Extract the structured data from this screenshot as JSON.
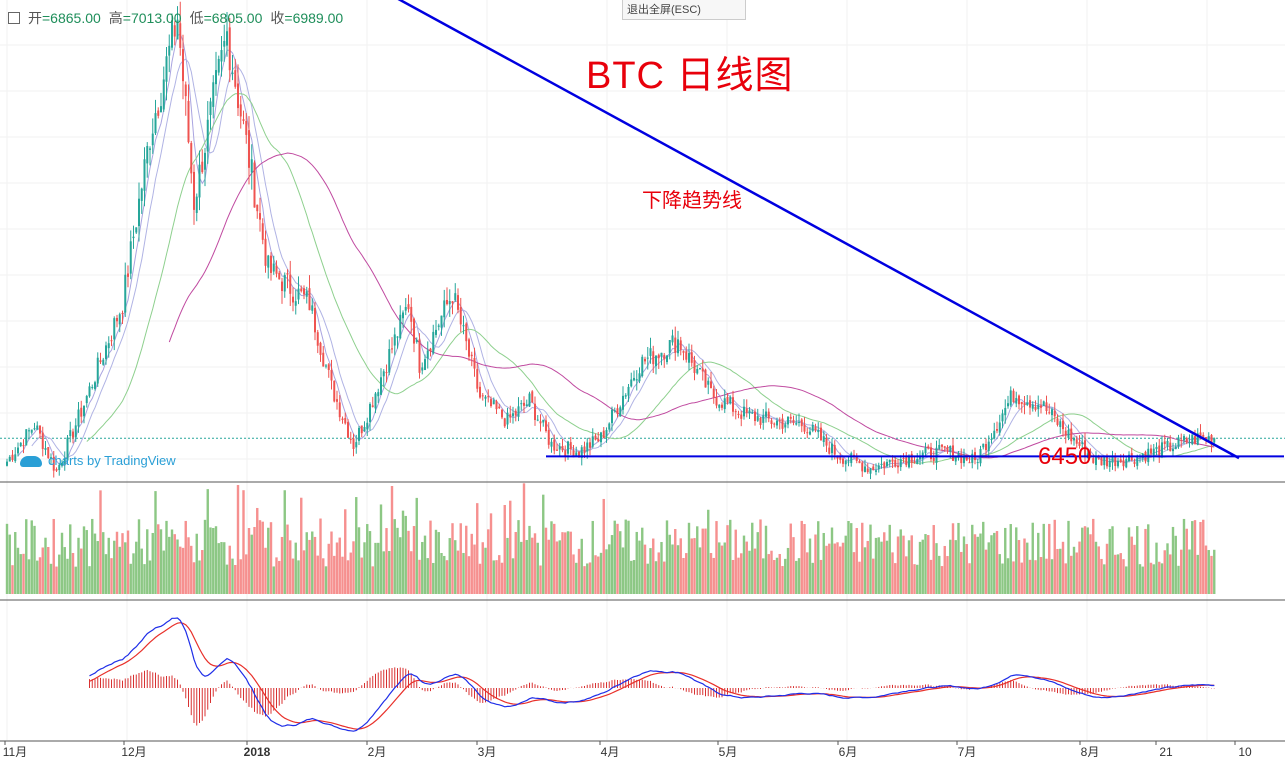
{
  "header": {
    "expand_icon": "expand-square-icon",
    "open_label": "开",
    "open_value": "=6865.00",
    "high_label": "高",
    "high_value": "=7013.00",
    "low_label": "低",
    "low_value": "=6805.00",
    "close_label": "收",
    "close_value": "=6989.00",
    "exit_fullscreen": "退出全屏(ESC)"
  },
  "annotations": {
    "title": "BTC 日线图",
    "trendline_label": "下降趋势线",
    "support_label": "6450"
  },
  "watermark": {
    "text": "charts by TradingView",
    "icon": "tradingview-cloud-icon"
  },
  "colors": {
    "up": "#26a69a",
    "down": "#ef5350",
    "vol_up": "#8cc784",
    "vol_down": "#f6908f",
    "trendline": "#0000e0",
    "annotation": "#e8000b",
    "ma_short": "#a9a4e0",
    "ma_mid": "#8ed08e",
    "ma_long": "#c04aa0",
    "macd": "#1f2ee8",
    "signal": "#e8302a",
    "hist": "#d83232"
  },
  "chart_data": {
    "type": "candlestick",
    "title": "BTC 日线图",
    "symbol": "BTC",
    "interval": "1D",
    "ylim": [
      5750,
      20000
    ],
    "x_ticks": [
      "11月",
      "12月",
      "2018",
      "2月",
      "3月",
      "4月",
      "5月",
      "6月",
      "7月",
      "8月",
      "21",
      "10"
    ],
    "last_bar": {
      "open": 6865,
      "high": 7013,
      "low": 6805,
      "close": 6989
    },
    "anchors": [
      [
        0,
        6300
      ],
      [
        10,
        7400
      ],
      [
        18,
        6000
      ],
      [
        28,
        8000
      ],
      [
        42,
        11000
      ],
      [
        52,
        16000
      ],
      [
        62,
        19500
      ],
      [
        68,
        14000
      ],
      [
        75,
        17000
      ],
      [
        80,
        19000
      ],
      [
        95,
        12000
      ],
      [
        110,
        11000
      ],
      [
        118,
        8500
      ],
      [
        126,
        6800
      ],
      [
        130,
        7500
      ],
      [
        146,
        11000
      ],
      [
        150,
        9200
      ],
      [
        162,
        11300
      ],
      [
        172,
        8200
      ],
      [
        182,
        7500
      ],
      [
        190,
        8100
      ],
      [
        198,
        6800
      ],
      [
        208,
        6600
      ],
      [
        216,
        7000
      ],
      [
        230,
        9200
      ],
      [
        244,
        9900
      ],
      [
        256,
        8300
      ],
      [
        268,
        7700
      ],
      [
        278,
        7500
      ],
      [
        290,
        7400
      ],
      [
        302,
        6500
      ],
      [
        314,
        6100
      ],
      [
        326,
        6400
      ],
      [
        342,
        6600
      ],
      [
        352,
        6300
      ],
      [
        366,
        8300
      ],
      [
        376,
        8000
      ],
      [
        386,
        7100
      ],
      [
        396,
        6300
      ],
      [
        408,
        6400
      ],
      [
        420,
        6650
      ],
      [
        432,
        6990
      ]
    ],
    "trendline": [
      [
        134,
        20400
      ],
      [
        448,
        6400
      ]
    ],
    "support": {
      "value": 6450,
      "from_bar": 196,
      "to_bar": 448
    },
    "moving_averages": [
      {
        "period": 5,
        "color": "#a9a4e0"
      },
      {
        "period": 10,
        "color": "#b0b3e4"
      },
      {
        "period": 30,
        "color": "#8ed08e"
      },
      {
        "period": 60,
        "color": "#c04aa0"
      }
    ],
    "volume": {
      "panel": true
    },
    "macd": {
      "fast": 12,
      "slow": 26,
      "signal": 9
    }
  }
}
